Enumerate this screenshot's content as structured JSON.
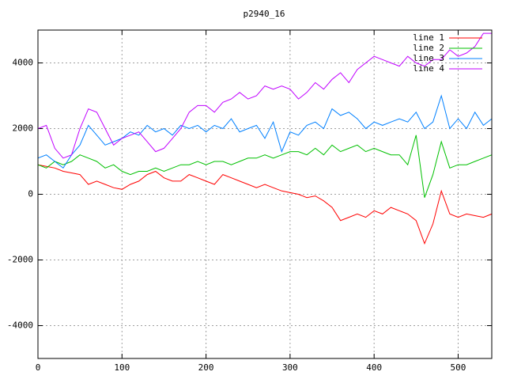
{
  "chart_data": {
    "type": "line",
    "title": "p2940_16",
    "x": [
      0,
      10,
      20,
      30,
      40,
      50,
      60,
      70,
      80,
      90,
      100,
      110,
      120,
      130,
      140,
      150,
      160,
      170,
      180,
      190,
      200,
      210,
      220,
      230,
      240,
      250,
      260,
      270,
      280,
      290,
      300,
      310,
      320,
      330,
      340,
      350,
      360,
      370,
      380,
      390,
      400,
      410,
      420,
      430,
      440,
      450,
      460,
      470,
      480,
      490,
      500,
      510,
      520,
      530,
      540
    ],
    "series": [
      {
        "name": "line 1",
        "color": "#ff0000",
        "values": [
          900,
          850,
          800,
          700,
          650,
          600,
          300,
          400,
          300,
          200,
          150,
          300,
          400,
          600,
          700,
          500,
          400,
          400,
          600,
          500,
          400,
          300,
          600,
          500,
          400,
          300,
          200,
          300,
          200,
          100,
          50,
          0,
          -100,
          -50,
          -200,
          -400,
          -800,
          -700,
          -600,
          -700,
          -500,
          -600,
          -400,
          -500,
          -600,
          -800,
          -1500,
          -900,
          100,
          -600,
          -700,
          -600,
          -650,
          -700,
          -600
        ]
      },
      {
        "name": "line 2",
        "color": "#00c000",
        "values": [
          900,
          800,
          1000,
          900,
          1000,
          1200,
          1100,
          1000,
          800,
          900,
          700,
          600,
          700,
          700,
          800,
          700,
          800,
          900,
          900,
          1000,
          900,
          1000,
          1000,
          900,
          1000,
          1100,
          1100,
          1200,
          1100,
          1200,
          1300,
          1300,
          1200,
          1400,
          1200,
          1500,
          1300,
          1400,
          1500,
          1300,
          1400,
          1300,
          1200,
          1200,
          900,
          1800,
          -100,
          600,
          1600,
          800,
          900,
          900,
          1000,
          1100,
          1200
        ]
      },
      {
        "name": "line 3",
        "color": "#0080ff",
        "values": [
          1100,
          1200,
          1000,
          800,
          1200,
          1500,
          2100,
          1800,
          1500,
          1600,
          1700,
          1900,
          1800,
          2100,
          1900,
          2000,
          1800,
          2100,
          2000,
          2100,
          1900,
          2100,
          2000,
          2300,
          1900,
          2000,
          2100,
          1700,
          2200,
          1300,
          1900,
          1800,
          2100,
          2200,
          2000,
          2600,
          2400,
          2500,
          2300,
          2000,
          2200,
          2100,
          2200,
          2300,
          2200,
          2500,
          2000,
          2200,
          3000,
          2000,
          2300,
          2000,
          2500,
          2100,
          2300
        ]
      },
      {
        "name": "line 4",
        "color": "#c000ff",
        "values": [
          2000,
          2100,
          1400,
          1100,
          1200,
          2000,
          2600,
          2500,
          2000,
          1500,
          1700,
          1800,
          1900,
          1600,
          1300,
          1400,
          1700,
          2000,
          2500,
          2700,
          2700,
          2500,
          2800,
          2900,
          3100,
          2900,
          3000,
          3300,
          3200,
          3300,
          3200,
          2900,
          3100,
          3400,
          3200,
          3500,
          3700,
          3400,
          3800,
          4000,
          4200,
          4100,
          4000,
          3900,
          4200,
          4000,
          3900,
          4100,
          4100,
          4400,
          4200,
          4300,
          4500,
          4900,
          4900
        ]
      }
    ],
    "xlim": [
      0,
      540
    ],
    "ylim": [
      -5000,
      5000
    ],
    "xticks": [
      0,
      100,
      200,
      300,
      400,
      500
    ],
    "yticks": [
      -4000,
      -2000,
      0,
      2000,
      4000
    ],
    "grid": true,
    "legend": "top-right"
  }
}
